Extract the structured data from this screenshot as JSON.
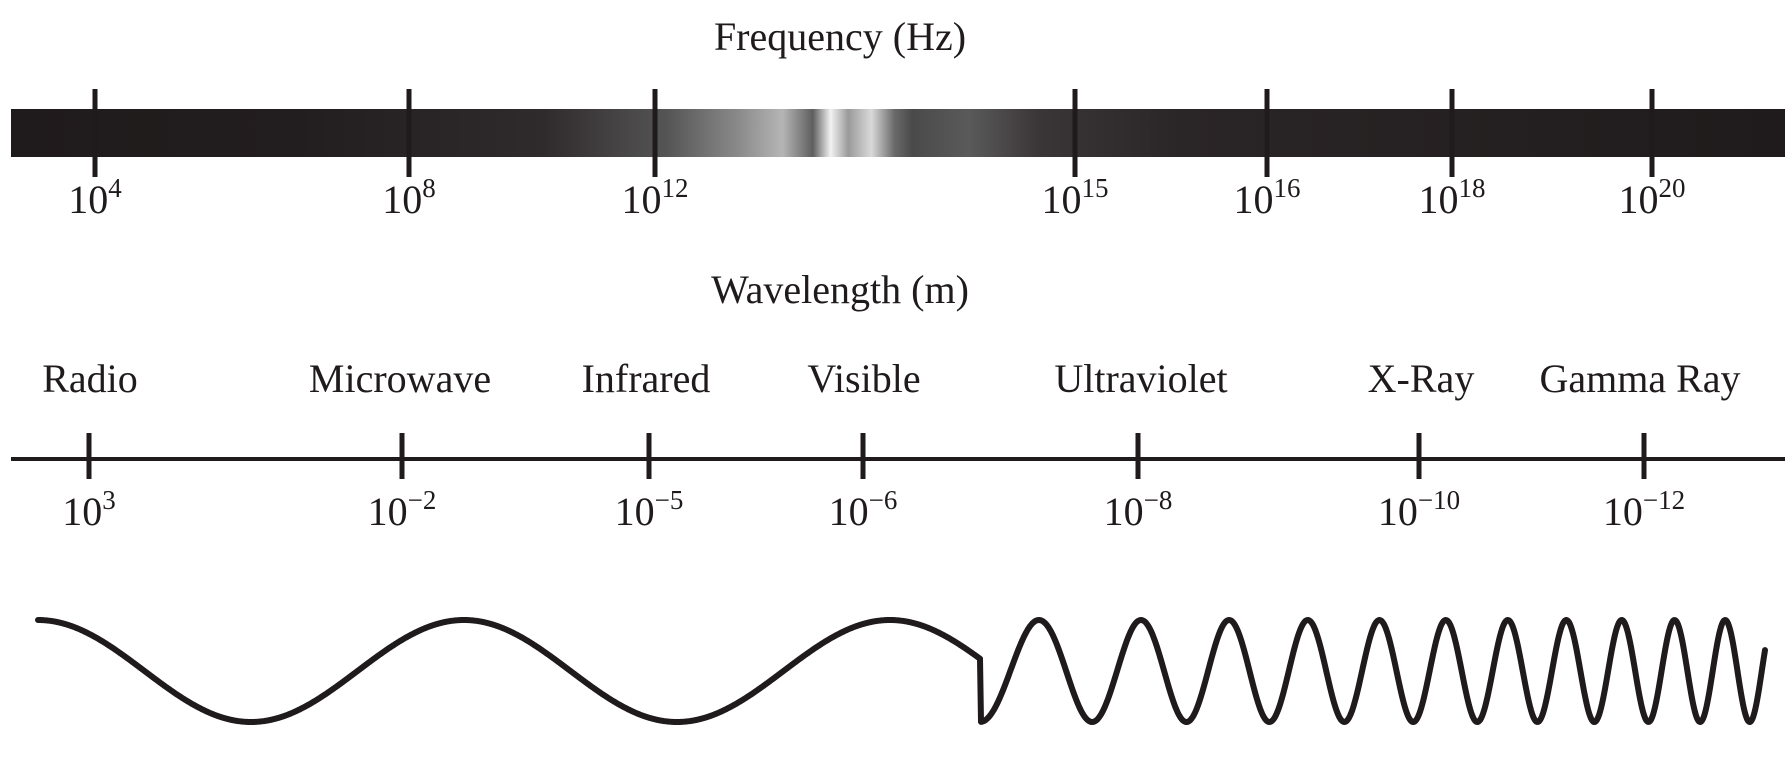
{
  "frequency": {
    "title": "Frequency (Hz)",
    "ticks": [
      {
        "base": "10",
        "exp": "4"
      },
      {
        "base": "10",
        "exp": "8"
      },
      {
        "base": "10",
        "exp": "12"
      },
      {
        "base": "10",
        "exp": "15"
      },
      {
        "base": "10",
        "exp": "16"
      },
      {
        "base": "10",
        "exp": "18"
      },
      {
        "base": "10",
        "exp": "20"
      }
    ]
  },
  "wavelength": {
    "title": "Wavelength (m)",
    "ticks": [
      {
        "base": "10",
        "exp": "3"
      },
      {
        "base": "10",
        "exp": "−2"
      },
      {
        "base": "10",
        "exp": "−5"
      },
      {
        "base": "10",
        "exp": "−6"
      },
      {
        "base": "10",
        "exp": "−8"
      },
      {
        "base": "10",
        "exp": "−10"
      },
      {
        "base": "10",
        "exp": "−12"
      }
    ]
  },
  "bands": [
    {
      "label": "Radio"
    },
    {
      "label": "Microwave"
    },
    {
      "label": "Infrared"
    },
    {
      "label": "Visible"
    },
    {
      "label": "Ultraviolet"
    },
    {
      "label": "X-Ray"
    },
    {
      "label": "Gamma Ray"
    }
  ],
  "colors": {
    "ink": "#1f1a1b",
    "bar_dark": "#1f1a1b",
    "bar_light": "#f2f2f2"
  }
}
